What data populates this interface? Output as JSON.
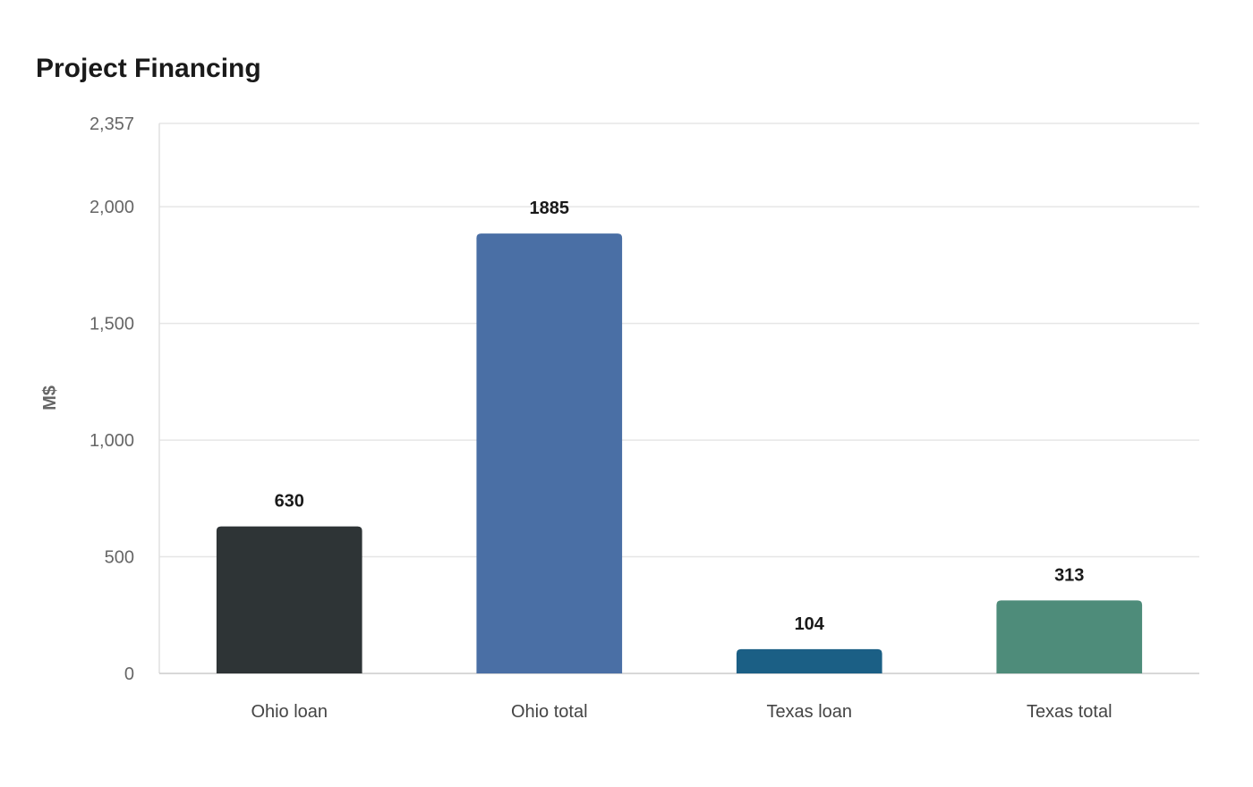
{
  "chart_data": {
    "type": "bar",
    "title": "Project Financing",
    "xlabel": "",
    "ylabel": "M$",
    "categories": [
      "Ohio loan",
      "Ohio total",
      "Texas loan",
      "Texas total"
    ],
    "values": [
      630,
      1885,
      104,
      313
    ],
    "value_labels": [
      "630",
      "1885",
      "104",
      "313"
    ],
    "colors": [
      "#2e3436",
      "#4a6fa5",
      "#1b5f85",
      "#4e8c7a"
    ],
    "ylim": [
      0,
      2357
    ],
    "yticks": [
      0,
      500,
      1000,
      1500,
      2000,
      2357
    ],
    "ytick_labels": [
      "0",
      "500",
      "1,000",
      "1,500",
      "2,000",
      "2,357"
    ],
    "grid": true,
    "legend": "none"
  }
}
